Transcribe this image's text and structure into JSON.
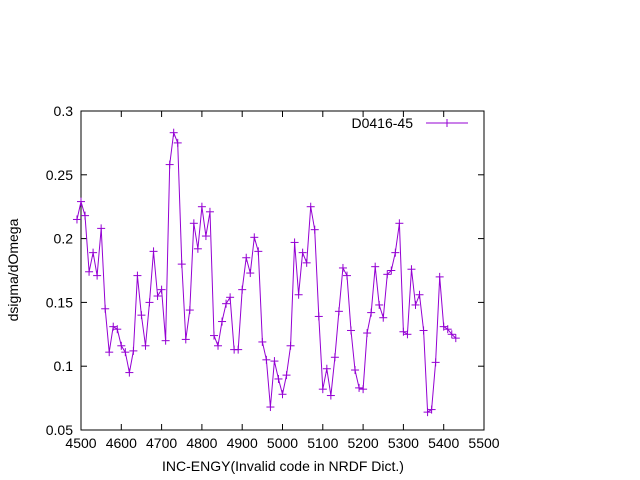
{
  "chart_data": {
    "type": "line",
    "xlabel": "INC-ENGY(Invalid code in NRDF Dict.)",
    "ylabel": "dsigma/dOmega",
    "xlim": [
      4500,
      5500
    ],
    "ylim": [
      0.05,
      0.3
    ],
    "x_ticks": [
      "4500",
      "4600",
      "4700",
      "4800",
      "4900",
      "5000",
      "5100",
      "5200",
      "5300",
      "5400",
      "5500"
    ],
    "y_ticks": [
      "0.05",
      "0.1",
      "0.15",
      "0.2",
      "0.25",
      "0.3"
    ],
    "grid": false,
    "legend_position": "top-right",
    "series_color": "#9400d3",
    "series": [
      {
        "name": "D0416-45",
        "x": [
          4490,
          4500,
          4510,
          4520,
          4530,
          4540,
          4550,
          4560,
          4570,
          4580,
          4590,
          4600,
          4610,
          4620,
          4630,
          4640,
          4650,
          4660,
          4670,
          4680,
          4690,
          4700,
          4710,
          4720,
          4730,
          4740,
          4750,
          4760,
          4770,
          4780,
          4790,
          4800,
          4810,
          4820,
          4830,
          4840,
          4850,
          4860,
          4870,
          4880,
          4890,
          4900,
          4910,
          4920,
          4930,
          4940,
          4950,
          4960,
          4970,
          4980,
          4990,
          5000,
          5010,
          5020,
          5030,
          5040,
          5050,
          5060,
          5070,
          5080,
          5090,
          5100,
          5110,
          5120,
          5130,
          5140,
          5150,
          5160,
          5170,
          5180,
          5190,
          5200,
          5210,
          5220,
          5230,
          5240,
          5250,
          5260,
          5270,
          5280,
          5290,
          5300,
          5310,
          5320,
          5330,
          5340,
          5350,
          5360,
          5370,
          5380,
          5390,
          5400,
          5410,
          5420,
          5430
        ],
        "y": [
          0.215,
          0.229,
          0.218,
          0.174,
          0.189,
          0.171,
          0.208,
          0.145,
          0.111,
          0.131,
          0.129,
          0.116,
          0.111,
          0.095,
          0.112,
          0.171,
          0.14,
          0.116,
          0.15,
          0.19,
          0.155,
          0.16,
          0.12,
          0.258,
          0.283,
          0.275,
          0.18,
          0.121,
          0.144,
          0.212,
          0.192,
          0.225,
          0.202,
          0.221,
          0.124,
          0.116,
          0.135,
          0.149,
          0.154,
          0.113,
          0.113,
          0.16,
          0.185,
          0.173,
          0.201,
          0.19,
          0.119,
          0.105,
          0.068,
          0.104,
          0.09,
          0.078,
          0.093,
          0.116,
          0.197,
          0.156,
          0.189,
          0.181,
          0.225,
          0.207,
          0.139,
          0.082,
          0.098,
          0.077,
          0.107,
          0.143,
          0.177,
          0.171,
          0.128,
          0.097,
          0.083,
          0.082,
          0.126,
          0.142,
          0.178,
          0.148,
          0.138,
          0.172,
          0.175,
          0.189,
          0.212,
          0.127,
          0.125,
          0.176,
          0.148,
          0.156,
          0.128,
          0.064,
          0.066,
          0.103,
          0.17,
          0.131,
          0.129,
          0.125,
          0.122
        ]
      }
    ]
  }
}
